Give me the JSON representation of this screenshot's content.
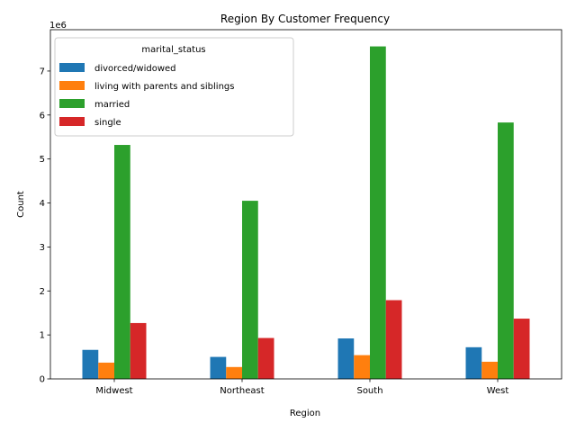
{
  "chart_data": {
    "type": "bar",
    "title": "Region By Customer Frequency",
    "xlabel": "Region",
    "ylabel": "Count",
    "y_offset_label": "1e6",
    "ylim": [
      0,
      7.94
    ],
    "y_ticks": [
      0,
      1,
      2,
      3,
      4,
      5,
      6,
      7
    ],
    "categories": [
      "Midwest",
      "Northeast",
      "South",
      "West"
    ],
    "legend": {
      "title": "marital_status",
      "placement": "top-left"
    },
    "grid": false,
    "series": [
      {
        "name": "divorced/widowed",
        "color": "#1f77b4",
        "values": [
          0.66,
          0.5,
          0.92,
          0.72
        ]
      },
      {
        "name": "living with parents and siblings",
        "color": "#ff7f0e",
        "values": [
          0.37,
          0.27,
          0.54,
          0.39
        ]
      },
      {
        "name": "married",
        "color": "#2ca02c",
        "values": [
          5.32,
          4.05,
          7.56,
          5.83
        ]
      },
      {
        "name": "single",
        "color": "#d62728",
        "values": [
          1.27,
          0.93,
          1.79,
          1.37
        ]
      }
    ]
  }
}
